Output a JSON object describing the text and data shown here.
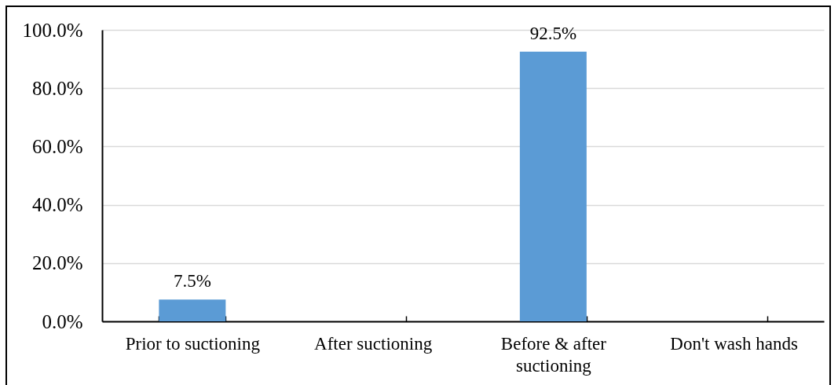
{
  "chart_data": {
    "type": "bar",
    "categories": [
      "Prior to suctioning",
      "After suctioning",
      "Before & after suctioning",
      "Don't wash hands"
    ],
    "values": [
      7.5,
      null,
      92.5,
      null
    ],
    "color": "#5b9bd5",
    "value_labels": [
      "7.5%",
      null,
      "92.5%",
      null
    ],
    "ylim": [
      0,
      100
    ],
    "yticks": [
      {
        "value": 0,
        "label": "0.0%"
      },
      {
        "value": 20,
        "label": "20.0%"
      },
      {
        "value": 40,
        "label": "40.0%"
      },
      {
        "value": 60,
        "label": "60.0%"
      },
      {
        "value": 80,
        "label": "80.0%"
      },
      {
        "value": 100,
        "label": "100.0%"
      }
    ],
    "grid": "y"
  }
}
